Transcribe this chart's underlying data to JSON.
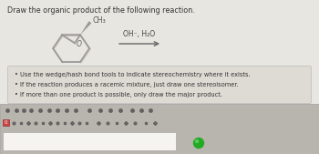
{
  "title": "Draw the organic product of the following reaction.",
  "title_fontsize": 5.8,
  "title_color": "#333333",
  "bg_color": "#e8e6e0",
  "bullet_box_color": "#dedad4",
  "bullet_box_edge": "#bbbbbb",
  "bullets": [
    "• Use the wedge/hash bond tools to indicate stereochemistry where it exists.",
    "• If the reaction produces a racemic mixture, just draw one stereoisomer.",
    "• If more than one product is possible, only draw the major product."
  ],
  "bullet_fontsize": 4.8,
  "reagent_text": "OH⁻, H₂O",
  "reagent_fontsize": 5.5,
  "mol_color": "#999999",
  "mol_shadow": "#c0bbb5",
  "toolbar_bg": "#b8b5ae",
  "toolbar_border": "#a0a0a0",
  "draw_area_bg": "#f5f4f0",
  "draw_area_border": "#aaaaaa",
  "arrow_color": "#666666",
  "ch3_color": "#555555",
  "o_color": "#666666",
  "green_circle": "#22aa22",
  "icon_color": "#555555"
}
